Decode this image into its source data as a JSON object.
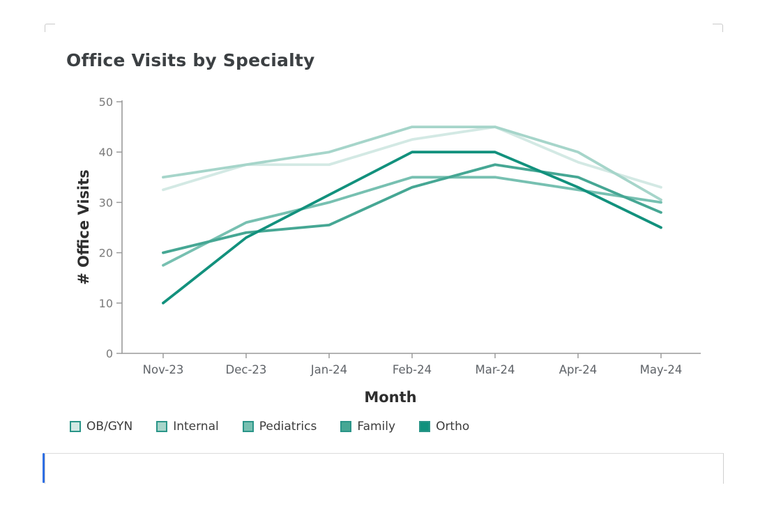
{
  "chart_data": {
    "type": "line",
    "title": "Office Visits by Specialty",
    "xlabel": "Month",
    "ylabel": "# Office Visits",
    "categories": [
      "Nov-23",
      "Dec-23",
      "Jan-24",
      "Feb-24",
      "Mar-24",
      "Apr-24",
      "May-24"
    ],
    "y_ticks": [
      0,
      10,
      20,
      30,
      40,
      50
    ],
    "ylim": [
      0,
      50
    ],
    "grid": false,
    "legend_position": "bottom",
    "legend_swatch_border_color": "#2a9588",
    "series": [
      {
        "name": "OB/GYN",
        "color": "#d3e9e4",
        "values": [
          32.5,
          37.5,
          37.5,
          42.5,
          45,
          38,
          33
        ]
      },
      {
        "name": "Internal",
        "color": "#a6d5ca",
        "values": [
          35,
          37.5,
          40,
          45,
          45,
          40,
          30.5
        ]
      },
      {
        "name": "Pediatrics",
        "color": "#77c0b1",
        "values": [
          17.5,
          26,
          30,
          35,
          35,
          32.5,
          30
        ]
      },
      {
        "name": "Family",
        "color": "#46a794",
        "values": [
          20,
          24,
          25.5,
          33,
          37.5,
          35,
          28
        ]
      },
      {
        "name": "Ortho",
        "color": "#12917d",
        "values": [
          10,
          23,
          31.5,
          40,
          40,
          33,
          25
        ]
      }
    ]
  },
  "frame": {
    "accent_color": "#2f6fe4",
    "border_color": "#cfcfcf"
  },
  "axis_style": {
    "axis_line_color": "#9a9a9a",
    "y_tick_label_color": "#7a7a7a",
    "x_tick_label_color": "#5f6368"
  }
}
